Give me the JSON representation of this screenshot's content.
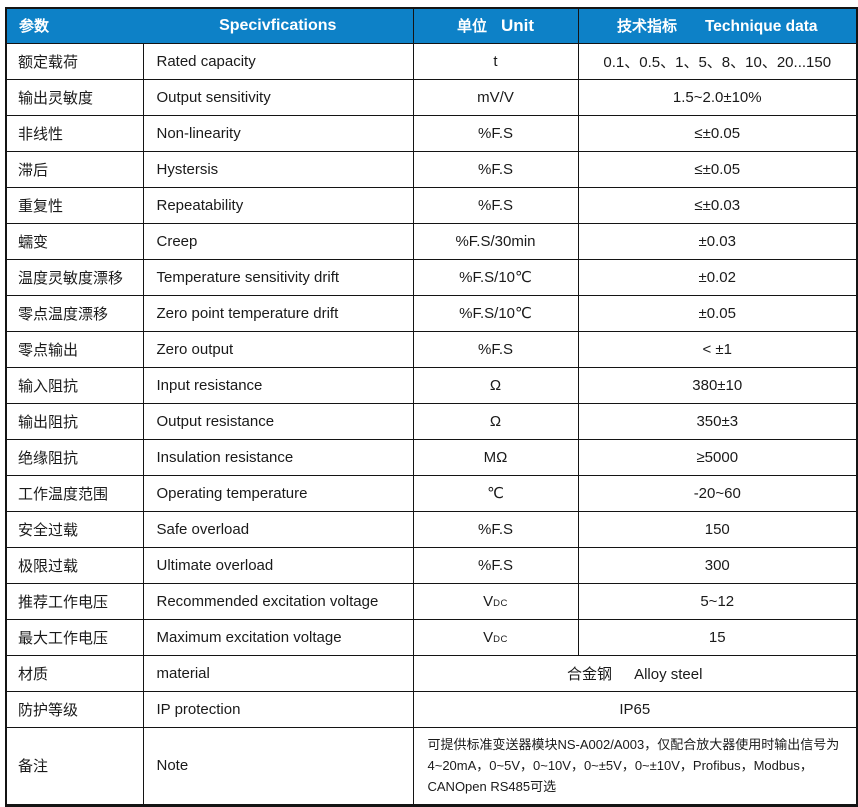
{
  "header": {
    "param_zh": "参数",
    "specifications": "Specivfications",
    "unit_zh": "单位",
    "unit_en": "Unit",
    "technique_zh": "技术指标",
    "technique_en": "Technique data"
  },
  "colors": {
    "header_bg": "#0d81c7",
    "header_text": "#ffffff",
    "border": "#141414",
    "body_text": "#1a1a1a"
  },
  "rows": [
    {
      "zh": "额定载荷",
      "en": "Rated capacity",
      "unit": "t",
      "value": "0.1、0.5、1、5、8、10、20...150"
    },
    {
      "zh": "输出灵敏度",
      "en": "Output sensitivity",
      "unit": "mV/V",
      "value": "1.5~2.0±10%"
    },
    {
      "zh": "非线性",
      "en": "Non-linearity",
      "unit": "%F.S",
      "value": "≤±0.05"
    },
    {
      "zh": "滞后",
      "en": "Hystersis",
      "unit": "%F.S",
      "value": "≤±0.05"
    },
    {
      "zh": "重复性",
      "en": "Repeatability",
      "unit": "%F.S",
      "value": "≤±0.03"
    },
    {
      "zh": "蠕变",
      "en": "Creep",
      "unit": "%F.S/30min",
      "value": "±0.03"
    },
    {
      "zh": "温度灵敏度漂移",
      "en": "Temperature sensitivity drift",
      "unit": "%F.S/10℃",
      "value": "±0.02"
    },
    {
      "zh": "零点温度漂移",
      "en": "Zero point temperature drift",
      "unit": "%F.S/10℃",
      "value": "±0.05"
    },
    {
      "zh": "零点输出",
      "en": "Zero output",
      "unit": "%F.S",
      "value": "< ±1"
    },
    {
      "zh": "输入阻抗",
      "en": "Input resistance",
      "unit": "Ω",
      "value": "380±10"
    },
    {
      "zh": "输出阻抗",
      "en": "Output resistance",
      "unit": "Ω",
      "value": "350±3"
    },
    {
      "zh": "绝缘阻抗",
      "en": "Insulation resistance",
      "unit": "MΩ",
      "value": "≥5000"
    },
    {
      "zh": "工作温度范围",
      "en": "Operating temperature",
      "unit": "℃",
      "value": "-20~60"
    },
    {
      "zh": "安全过载",
      "en": "Safe overload",
      "unit": "%F.S",
      "value": "150"
    },
    {
      "zh": "极限过载",
      "en": "Ultimate overload",
      "unit": "%F.S",
      "value": "300"
    },
    {
      "zh": "推荐工作电压",
      "en": "Recommended excitation voltage",
      "unit": "V",
      "unit_sub": "DC",
      "value": "5~12"
    },
    {
      "zh": "最大工作电压",
      "en": "Maximum excitation voltage",
      "unit": "V",
      "unit_sub": "DC",
      "value": "15"
    }
  ],
  "merged_rows": [
    {
      "zh": "材质",
      "en": "material",
      "value_zh": "合金钢",
      "value": "Alloy steel"
    },
    {
      "zh": "防护等级",
      "en": "IP protection",
      "value": "IP65"
    },
    {
      "zh": "备注",
      "en": "Note",
      "value": "可提供标准变送器模块NS-A002/A003，仅配合放大器使用时输出信号为4~20mA，0~5V，0~10V，0~±5V，0~±10V，Profibus，Modbus，CANOpen RS485可选",
      "note": true
    }
  ]
}
